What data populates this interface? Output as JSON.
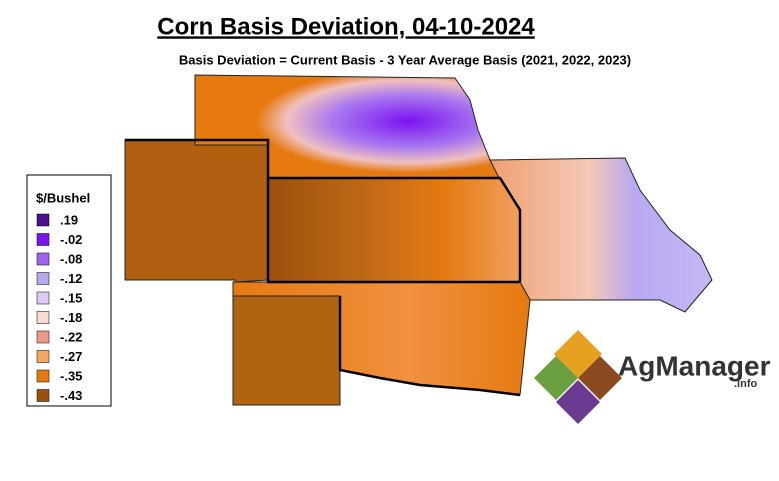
{
  "header": {
    "title": "Corn Basis Deviation, 04-10-2024",
    "subtitle": "Basis Deviation = Current Basis - 3 Year Average Basis (2021, 2022, 2023)"
  },
  "legend": {
    "title": "$/Bushel",
    "items": [
      {
        "label": ".19",
        "color": "#4a1190"
      },
      {
        "label": "-.02",
        "color": "#7b12f0"
      },
      {
        "label": "-.08",
        "color": "#a060f0"
      },
      {
        "label": "-.12",
        "color": "#b8a8f0"
      },
      {
        "label": "-.15",
        "color": "#dcccf4"
      },
      {
        "label": "-.18",
        "color": "#f8dcd0"
      },
      {
        "label": "-.22",
        "color": "#f09888"
      },
      {
        "label": "-.27",
        "color": "#f4a860"
      },
      {
        "label": "-.35",
        "color": "#e67a10"
      },
      {
        "label": "-.43",
        "color": "#9c500c"
      }
    ]
  },
  "logo": {
    "name": "AgManager",
    "suffix": ".info"
  }
}
